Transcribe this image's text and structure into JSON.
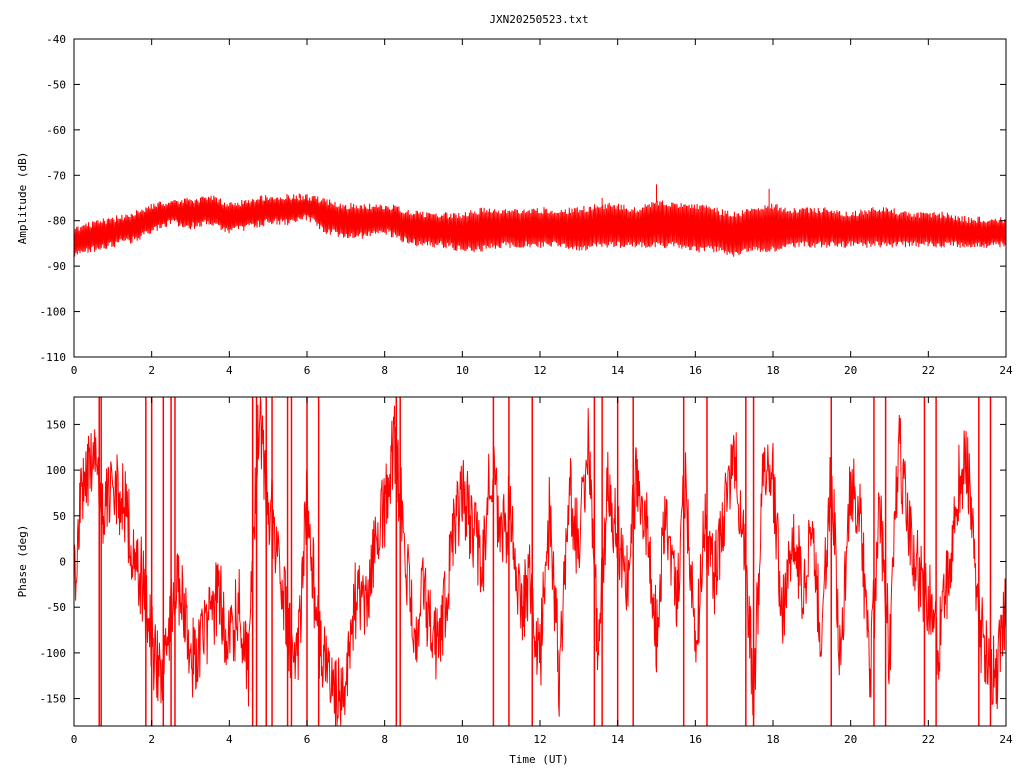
{
  "title": "JXN20250523.txt",
  "colors": {
    "series": "#ff0000",
    "axes": "#000000",
    "background": "#ffffff"
  },
  "chart_data": [
    {
      "type": "line",
      "title": "JXN20250523.txt",
      "xlabel": "",
      "ylabel": "Amplitude (dB)",
      "xlim": [
        0,
        24
      ],
      "ylim": [
        -110,
        -40
      ],
      "xticks": [
        0,
        2,
        4,
        6,
        8,
        10,
        12,
        14,
        16,
        18,
        20,
        22,
        24
      ],
      "yticks": [
        -40,
        -50,
        -60,
        -70,
        -80,
        -90,
        -100,
        -110
      ],
      "grid": false,
      "series": [
        {
          "color": "#ff0000",
          "style": "noisy band",
          "x": [
            0,
            0.5,
            1,
            1.5,
            2,
            2.5,
            3,
            3.5,
            4,
            4.5,
            5,
            5.5,
            6,
            6.5,
            7,
            7.5,
            8,
            8.5,
            9,
            9.5,
            10,
            10.5,
            11,
            11.5,
            12,
            12.5,
            13,
            13.5,
            14,
            14.5,
            15,
            15.5,
            16,
            16.5,
            17,
            17.5,
            18,
            18.5,
            19,
            19.5,
            20,
            20.5,
            21,
            21.5,
            22,
            22.5,
            23,
            23.5,
            24
          ],
          "y_upper": [
            -82,
            -81,
            -80,
            -79,
            -77,
            -76,
            -76,
            -75,
            -77,
            -76,
            -75,
            -75,
            -75,
            -76,
            -77,
            -77,
            -77,
            -78,
            -79,
            -79,
            -79,
            -78,
            -78,
            -78,
            -78,
            -78,
            -78,
            -77,
            -77,
            -78,
            -76,
            -77,
            -77,
            -78,
            -79,
            -78,
            -77,
            -78,
            -78,
            -78,
            -79,
            -78,
            -78,
            -79,
            -79,
            -79,
            -80,
            -80,
            -80
          ],
          "y_lower": [
            -87,
            -86,
            -85,
            -84,
            -82,
            -80,
            -81,
            -80,
            -82,
            -81,
            -80,
            -80,
            -79,
            -82,
            -83,
            -83,
            -82,
            -84,
            -85,
            -85,
            -86,
            -86,
            -85,
            -85,
            -85,
            -85,
            -86,
            -85,
            -85,
            -85,
            -85,
            -85,
            -86,
            -86,
            -87,
            -86,
            -86,
            -85,
            -85,
            -85,
            -85,
            -85,
            -85,
            -85,
            -85,
            -85,
            -85,
            -85,
            -85
          ],
          "peaks": [
            [
              15.0,
              -72
            ],
            [
              17.9,
              -73
            ],
            [
              13.6,
              -75
            ],
            [
              5.8,
              -74
            ],
            [
              3.3,
              -75
            ]
          ]
        }
      ]
    },
    {
      "type": "line",
      "title": "",
      "xlabel": "Time (UT)",
      "ylabel": "Phase (deg)",
      "xlim": [
        0,
        24
      ],
      "ylim": [
        -180,
        180
      ],
      "xticks": [
        0,
        2,
        4,
        6,
        8,
        10,
        12,
        14,
        16,
        18,
        20,
        22,
        24
      ],
      "yticks": [
        150,
        100,
        50,
        0,
        -50,
        -100,
        -150
      ],
      "grid": false,
      "series": [
        {
          "color": "#ff0000",
          "style": "wrapped phase",
          "x": [
            0,
            0.25,
            0.5,
            0.75,
            1,
            1.25,
            1.5,
            1.75,
            2,
            2.25,
            2.5,
            2.75,
            3,
            3.25,
            3.5,
            3.75,
            4,
            4.25,
            4.5,
            4.75,
            5,
            5.25,
            5.5,
            5.75,
            6,
            6.25,
            6.5,
            6.75,
            7,
            7.25,
            7.5,
            7.75,
            8,
            8.25,
            8.5,
            8.75,
            9,
            9.25,
            9.5,
            9.75,
            10,
            10.25,
            10.5,
            10.75,
            11,
            11.25,
            11.5,
            11.75,
            12,
            12.25,
            12.5,
            12.75,
            13,
            13.25,
            13.5,
            13.75,
            14,
            14.25,
            14.5,
            14.75,
            15,
            15.25,
            15.5,
            15.75,
            16,
            16.25,
            16.5,
            16.75,
            17,
            17.25,
            17.5,
            17.75,
            18,
            18.25,
            18.5,
            18.75,
            19,
            19.25,
            19.5,
            19.75,
            20,
            20.25,
            20.5,
            20.75,
            21,
            21.25,
            21.5,
            21.75,
            22,
            22.25,
            22.5,
            22.75,
            23,
            23.25,
            23.5,
            23.75,
            24
          ],
          "y": [
            -20,
            90,
            120,
            60,
            80,
            70,
            20,
            -20,
            -90,
            -140,
            -60,
            -20,
            -110,
            -90,
            -60,
            -30,
            -100,
            -40,
            -120,
            160,
            60,
            20,
            -80,
            -120,
            80,
            -70,
            -120,
            -150,
            -130,
            -40,
            -60,
            20,
            60,
            130,
            30,
            -90,
            -20,
            -100,
            -60,
            20,
            70,
            40,
            -10,
            110,
            20,
            60,
            -60,
            -20,
            -110,
            60,
            -130,
            90,
            10,
            140,
            -100,
            80,
            30,
            -20,
            100,
            40,
            -80,
            60,
            -40,
            90,
            -100,
            40,
            -20,
            60,
            120,
            30,
            -150,
            100,
            90,
            -60,
            40,
            -20,
            20,
            -80,
            100,
            -120,
            90,
            50,
            -130,
            60,
            -100,
            130,
            30,
            -10,
            -40,
            -90,
            -20,
            80,
            120,
            -60,
            -100,
            -130,
            -40
          ],
          "wrap_points_x": [
            0.65,
            0.7,
            1.85,
            2.0,
            2.3,
            2.5,
            2.6,
            4.6,
            4.7,
            4.95,
            5.1,
            5.5,
            5.6,
            6.0,
            6.3,
            8.3,
            8.4,
            10.8,
            11.2,
            11.8,
            13.4,
            13.6,
            14.0,
            14.4,
            15.7,
            16.3,
            17.3,
            17.5,
            19.5,
            20.6,
            20.9,
            21.9,
            22.2,
            23.3,
            23.6
          ]
        }
      ]
    }
  ]
}
